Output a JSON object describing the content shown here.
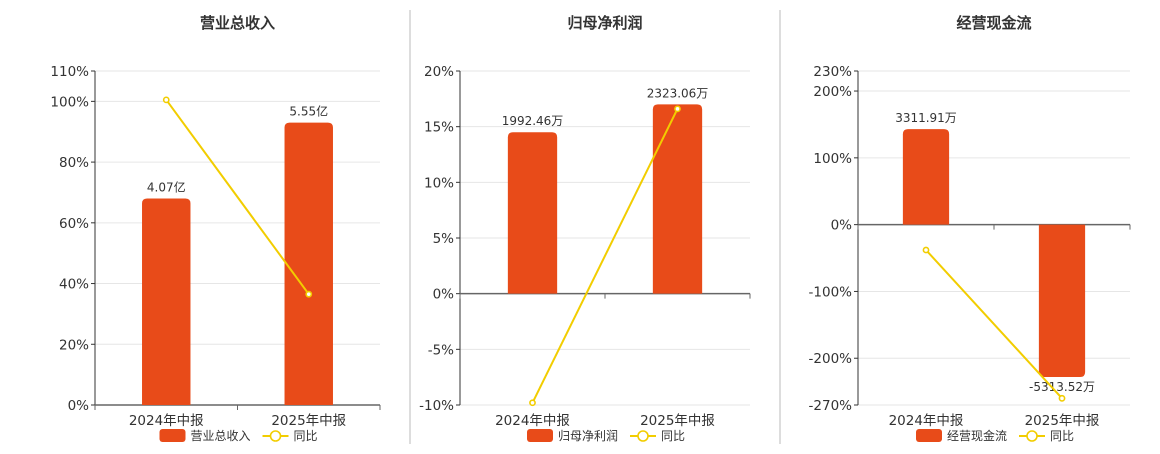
{
  "legend": {
    "yoy_label": "同比"
  },
  "colors": {
    "bar": "#E84B19",
    "line": "#F2CD00",
    "axis": "#333333",
    "grid": "#E6E6E6",
    "divider": "#BBBBBB",
    "text": "#333333"
  },
  "chart_data": [
    {
      "type": "bar",
      "title": "营业总收入",
      "categories": [
        "2024年中报",
        "2025年中报"
      ],
      "series": [
        {
          "name": "营业总收入",
          "kind": "bar",
          "labels": [
            "4.07亿",
            "5.55亿"
          ],
          "values": [
            68,
            93
          ]
        },
        {
          "name": "同比",
          "kind": "line",
          "values": [
            100.5,
            36.5
          ]
        }
      ],
      "yticks": [
        0,
        20,
        40,
        60,
        80,
        100,
        110
      ],
      "ylim": [
        0,
        110
      ],
      "grid": true,
      "legend_position": "bottom"
    },
    {
      "type": "bar",
      "title": "归母净利润",
      "categories": [
        "2024年中报",
        "2025年中报"
      ],
      "series": [
        {
          "name": "归母净利润",
          "kind": "bar",
          "labels": [
            "1992.46万",
            "2323.06万"
          ],
          "values": [
            14.5,
            17
          ]
        },
        {
          "name": "同比",
          "kind": "line",
          "values": [
            -9.8,
            16.6
          ]
        }
      ],
      "yticks": [
        -10,
        -5,
        0,
        5,
        10,
        15,
        20
      ],
      "ylim": [
        -10,
        20
      ],
      "grid": true,
      "legend_position": "bottom"
    },
    {
      "type": "bar",
      "title": "经营现金流",
      "categories": [
        "2024年中报",
        "2025年中报"
      ],
      "series": [
        {
          "name": "经营现金流",
          "kind": "bar",
          "labels": [
            "3311.91万",
            "-5313.52万"
          ],
          "values": [
            143,
            -228
          ]
        },
        {
          "name": "同比",
          "kind": "line",
          "values": [
            -38,
            -260
          ]
        }
      ],
      "yticks": [
        -270,
        -200,
        -100,
        0,
        100,
        200,
        230
      ],
      "ylim": [
        -270,
        230
      ],
      "grid": true,
      "legend_position": "bottom"
    }
  ]
}
